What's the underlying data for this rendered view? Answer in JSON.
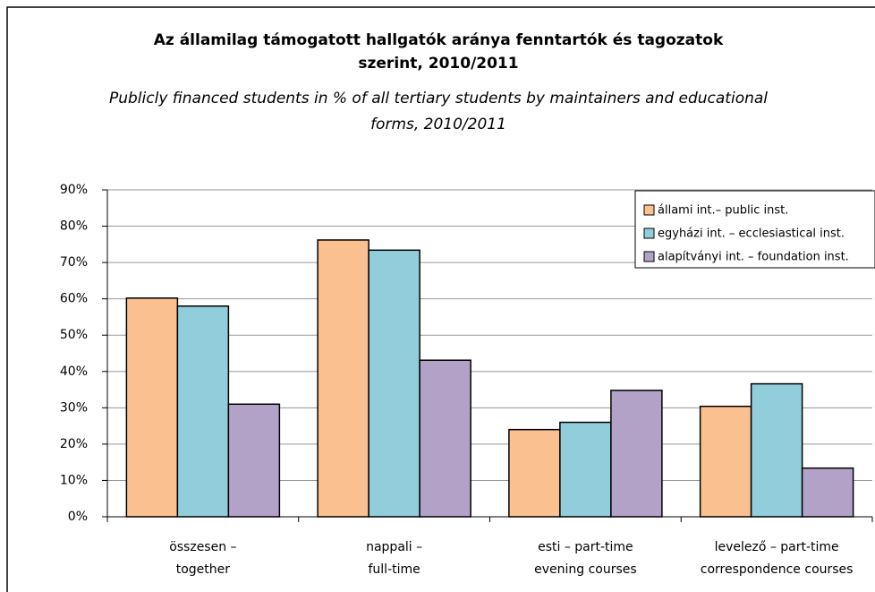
{
  "chart_data": {
    "type": "bar",
    "title": [
      "Az államilag támogatott hallgatók aránya fenntartók  és tagozatok",
      "szerint,  2010/2011"
    ],
    "subtitle": [
      "Publicly financed students in % of all tertiary students by maintainers and educational",
      "forms, 2010/2011"
    ],
    "categories": [
      [
        "összesen –",
        "together"
      ],
      [
        "nappali –",
        "full-time"
      ],
      [
        "esti – part-time",
        "evening courses"
      ],
      [
        "levelező – part-time",
        "correspondence courses"
      ]
    ],
    "series": [
      {
        "name": "állami int.– public inst.",
        "color": "#fac090",
        "values": [
          60.2,
          76.2,
          24,
          30.4
        ]
      },
      {
        "name": "egyházi int. – ecclesiastical inst.",
        "color": "#92cddc",
        "values": [
          58,
          73.4,
          26,
          36.6
        ]
      },
      {
        "name": "alapítványi int. – foundation inst.",
        "color": "#b3a2c7",
        "values": [
          31,
          43.1,
          34.8,
          13.4
        ]
      }
    ],
    "ylim": [
      0,
      90
    ],
    "yticks": [
      {
        "value": 0,
        "label": "0%"
      },
      {
        "value": 10,
        "label": "10%"
      },
      {
        "value": 20,
        "label": "20%"
      },
      {
        "value": 30,
        "label": "30%"
      },
      {
        "value": 40,
        "label": "40%"
      },
      {
        "value": 50,
        "label": "50%"
      },
      {
        "value": 60,
        "label": "60%"
      },
      {
        "value": 70,
        "label": "70%"
      },
      {
        "value": 80,
        "label": "80%"
      },
      {
        "value": 90,
        "label": "90%"
      }
    ],
    "grid": true,
    "legend": "top-right"
  }
}
